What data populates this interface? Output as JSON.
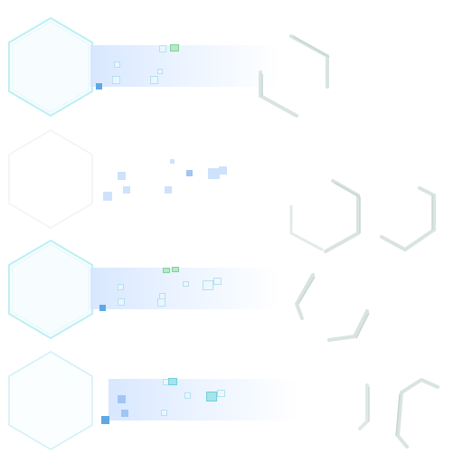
{
  "theme": {
    "hex_stroke": "#bdeff4",
    "hex_stroke_faint": "#eef3f6",
    "band_color": "#d6e6ff",
    "ghost_stroke": "#d9e4e2",
    "ghost_shadow": "#c7d6d2"
  },
  "rows": [
    {
      "id": "row-1",
      "hex_icon": "hexagon-icon",
      "style": "highlighted"
    },
    {
      "id": "row-2",
      "hex_icon": "hexagon-icon",
      "style": "faint"
    },
    {
      "id": "row-3",
      "hex_icon": "hexagon-icon",
      "style": "highlighted"
    },
    {
      "id": "row-4",
      "hex_icon": "hexagon-icon",
      "style": "highlighted"
    }
  ],
  "ghost_shapes": [
    "hexagon-outline-icon"
  ]
}
